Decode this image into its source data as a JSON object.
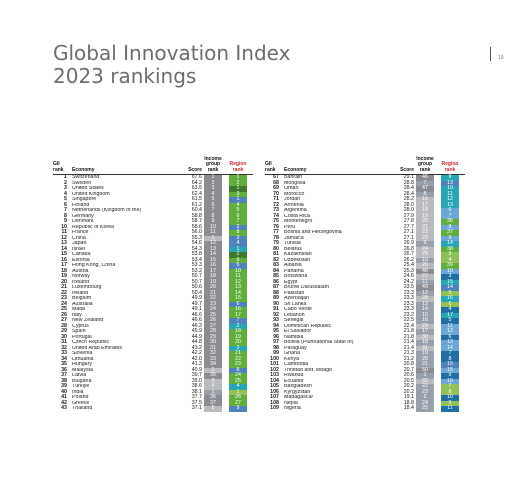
{
  "title": {
    "line1": "Global Innovation Index",
    "line2": "2023 rankings"
  },
  "page_number": "19",
  "headers": {
    "gii_rank": "GII rank",
    "economy": "Economy",
    "score": "Score",
    "income_group_rank": "Income group rank",
    "region_rank": "Region rank"
  },
  "left": [
    {
      "rank": "1",
      "economy": "Switzerland",
      "score": "67.6",
      "ig": "1",
      "reg": "1"
    },
    {
      "rank": "2",
      "economy": "Sweden",
      "score": "64.2",
      "ig": "2",
      "reg": "2"
    },
    {
      "rank": "3",
      "economy": "United States",
      "score": "63.5",
      "ig": "3",
      "reg": "1"
    },
    {
      "rank": "4",
      "economy": "United Kingdom",
      "score": "62.4",
      "ig": "4",
      "reg": "3"
    },
    {
      "rank": "5",
      "economy": "Singapore",
      "score": "61.5",
      "ig": "5",
      "reg": "1"
    },
    {
      "rank": "6",
      "economy": "Finland",
      "score": "61.2",
      "ig": "6",
      "reg": "4"
    },
    {
      "rank": "7",
      "economy": "Netherlands (Kingdom of the)",
      "score": "60.4",
      "ig": "7",
      "reg": "5"
    },
    {
      "rank": "8",
      "economy": "Germany",
      "score": "58.8",
      "ig": "8",
      "reg": "6"
    },
    {
      "rank": "9",
      "economy": "Denmark",
      "score": "58.7",
      "ig": "9",
      "reg": "7"
    },
    {
      "rank": "10",
      "economy": "Republic of Korea",
      "score": "58.6",
      "ig": "10",
      "reg": "2"
    },
    {
      "rank": "11",
      "economy": "France",
      "score": "56.0",
      "ig": "11",
      "reg": "8"
    },
    {
      "rank": "12",
      "economy": "China",
      "score": "55.3",
      "ig": "1",
      "reg": "3"
    },
    {
      "rank": "13",
      "economy": "Japan",
      "score": "54.6",
      "ig": "12",
      "reg": "4"
    },
    {
      "rank": "14",
      "economy": "Israel",
      "score": "54.3",
      "ig": "13",
      "reg": "1"
    },
    {
      "rank": "15",
      "economy": "Canada",
      "score": "53.8",
      "ig": "14",
      "reg": "2"
    },
    {
      "rank": "16",
      "economy": "Estonia",
      "score": "53.4",
      "ig": "15",
      "reg": "9"
    },
    {
      "rank": "17",
      "economy": "Hong Kong, China",
      "score": "53.3",
      "ig": "16",
      "reg": "5"
    },
    {
      "rank": "18",
      "economy": "Austria",
      "score": "53.2",
      "ig": "17",
      "reg": "10"
    },
    {
      "rank": "19",
      "economy": "Norway",
      "score": "50.7",
      "ig": "18",
      "reg": "11"
    },
    {
      "rank": "20",
      "economy": "Iceland",
      "score": "50.7",
      "ig": "19",
      "reg": "12"
    },
    {
      "rank": "21",
      "economy": "Luxembourg",
      "score": "50.6",
      "ig": "20",
      "reg": "13"
    },
    {
      "rank": "22",
      "economy": "Ireland",
      "score": "50.4",
      "ig": "21",
      "reg": "14"
    },
    {
      "rank": "23",
      "economy": "Belgium",
      "score": "49.9",
      "ig": "22",
      "reg": "15"
    },
    {
      "rank": "24",
      "economy": "Australia",
      "score": "49.7",
      "ig": "23",
      "reg": "6"
    },
    {
      "rank": "25",
      "economy": "Malta",
      "score": "49.1",
      "ig": "24",
      "reg": "16"
    },
    {
      "rank": "26",
      "economy": "Italy",
      "score": "46.6",
      "ig": "25",
      "reg": "17"
    },
    {
      "rank": "27",
      "economy": "New Zealand",
      "score": "46.6",
      "ig": "26",
      "reg": "7"
    },
    {
      "rank": "28",
      "economy": "Cyprus",
      "score": "46.3",
      "ig": "27",
      "reg": "2"
    },
    {
      "rank": "29",
      "economy": "Spain",
      "score": "45.9",
      "ig": "28",
      "reg": "18"
    },
    {
      "rank": "30",
      "economy": "Portugal",
      "score": "44.9",
      "ig": "29",
      "reg": "19"
    },
    {
      "rank": "31",
      "economy": "Czech Republic",
      "score": "44.8",
      "ig": "30",
      "reg": "20"
    },
    {
      "rank": "32",
      "economy": "United Arab Emirates",
      "score": "43.2",
      "ig": "31",
      "reg": "3"
    },
    {
      "rank": "33",
      "economy": "Slovenia",
      "score": "42.2",
      "ig": "32",
      "reg": "21"
    },
    {
      "rank": "34",
      "economy": "Lithuania",
      "score": "42.0",
      "ig": "33",
      "reg": "22"
    },
    {
      "rank": "35",
      "economy": "Hungary",
      "score": "41.3",
      "ig": "34",
      "reg": "23"
    },
    {
      "rank": "36",
      "economy": "Malaysia",
      "score": "40.9",
      "ig": "2",
      "reg": "8"
    },
    {
      "rank": "37",
      "economy": "Latvia",
      "score": "39.7",
      "ig": "35",
      "reg": "24"
    },
    {
      "rank": "38",
      "economy": "Bulgaria",
      "score": "39.0",
      "ig": "3",
      "reg": "25"
    },
    {
      "rank": "39",
      "economy": "Türkiye",
      "score": "38.6",
      "ig": "4",
      "reg": "4"
    },
    {
      "rank": "40",
      "economy": "India",
      "score": "38.1",
      "ig": "1",
      "reg": "1"
    },
    {
      "rank": "41",
      "economy": "Poland",
      "score": "37.7",
      "ig": "36",
      "reg": "26"
    },
    {
      "rank": "42",
      "economy": "Greece",
      "score": "37.5",
      "ig": "37",
      "reg": "27"
    },
    {
      "rank": "43",
      "economy": "Thailand",
      "score": "37.1",
      "ig": "5",
      "reg": "9"
    }
  ],
  "right": [
    {
      "rank": "67",
      "economy": "Bahrain",
      "score": "29.1",
      "ig": "46",
      "reg": "9"
    },
    {
      "rank": "68",
      "economy": "Mongolia",
      "score": "28.8",
      "ig": "7",
      "reg": "13"
    },
    {
      "rank": "69",
      "economy": "Oman",
      "score": "28.4",
      "ig": "47",
      "reg": "10"
    },
    {
      "rank": "70",
      "economy": "Morocco",
      "score": "28.4",
      "ig": "8",
      "reg": "11"
    },
    {
      "rank": "71",
      "economy": "Jordan",
      "score": "28.2",
      "ig": "16",
      "reg": "12"
    },
    {
      "rank": "72",
      "economy": "Armenia",
      "score": "28.0",
      "ig": "17",
      "reg": "13"
    },
    {
      "rank": "73",
      "economy": "Argentina",
      "score": "28.0",
      "ig": "18",
      "reg": "6"
    },
    {
      "rank": "74",
      "economy": "Costa Rica",
      "score": "27.9",
      "ig": "19",
      "reg": "7"
    },
    {
      "rank": "75",
      "economy": "Montenegro",
      "score": "27.8",
      "ig": "20",
      "reg": "36"
    },
    {
      "rank": "76",
      "economy": "Peru",
      "score": "27.7",
      "ig": "21",
      "reg": "8"
    },
    {
      "rank": "77",
      "economy": "Bosnia and Herzegovina",
      "score": "27.1",
      "ig": "22",
      "reg": "37"
    },
    {
      "rank": "78",
      "economy": "Jamaica",
      "score": "27.1",
      "ig": "23",
      "reg": "9"
    },
    {
      "rank": "79",
      "economy": "Tunisia",
      "score": "26.9",
      "ig": "9",
      "reg": "14"
    },
    {
      "rank": "80",
      "economy": "Belarus",
      "score": "26.8",
      "ig": "24",
      "reg": "38"
    },
    {
      "rank": "81",
      "economy": "Kazakhstan",
      "score": "26.7",
      "ig": "25",
      "reg": "3"
    },
    {
      "rank": "82",
      "economy": "Uzbekistan",
      "score": "26.2",
      "ig": "10",
      "reg": "4"
    },
    {
      "rank": "83",
      "economy": "Albania",
      "score": "25.4",
      "ig": "26",
      "reg": "39"
    },
    {
      "rank": "84",
      "economy": "Panama",
      "score": "25.3",
      "ig": "48",
      "reg": "10"
    },
    {
      "rank": "85",
      "economy": "Botswana",
      "score": "24.6",
      "ig": "27",
      "reg": "3"
    },
    {
      "rank": "86",
      "economy": "Egypt",
      "score": "24.2",
      "ig": "11",
      "reg": "15"
    },
    {
      "rank": "87",
      "economy": "Brunei Darussalam",
      "score": "23.5",
      "ig": "49",
      "reg": "14"
    },
    {
      "rank": "88",
      "economy": "Pakistan",
      "score": "23.3",
      "ig": "12",
      "reg": "5"
    },
    {
      "rank": "89",
      "economy": "Azerbaijan",
      "score": "23.3",
      "ig": "28",
      "reg": "16"
    },
    {
      "rank": "90",
      "economy": "Sri Lanka",
      "score": "23.3",
      "ig": "13",
      "reg": "6"
    },
    {
      "rank": "91",
      "economy": "Cabo Verde",
      "score": "23.3",
      "ig": "14",
      "reg": "4"
    },
    {
      "rank": "92",
      "economy": "Lebanon",
      "score": "23.2",
      "ig": "15",
      "reg": "17"
    },
    {
      "rank": "93",
      "economy": "Senegal",
      "score": "22.5",
      "ig": "16",
      "reg": "5"
    },
    {
      "rank": "94",
      "economy": "Dominican Republic",
      "score": "22.4",
      "ig": "29",
      "reg": "11"
    },
    {
      "rank": "95",
      "economy": "El Salvador",
      "score": "21.8",
      "ig": "17",
      "reg": "12"
    },
    {
      "rank": "96",
      "economy": "Namibia",
      "score": "21.8",
      "ig": "30",
      "reg": "6"
    },
    {
      "rank": "97",
      "economy": "Bolivia (Plurinational State of)",
      "score": "21.4",
      "ig": "18",
      "reg": "13"
    },
    {
      "rank": "98",
      "economy": "Paraguay",
      "score": "21.4",
      "ig": "31",
      "reg": "14"
    },
    {
      "rank": "99",
      "economy": "Ghana",
      "score": "21.3",
      "ig": "19",
      "reg": "7"
    },
    {
      "rank": "100",
      "economy": "Kenya",
      "score": "21.2",
      "ig": "20",
      "reg": "8"
    },
    {
      "rank": "101",
      "economy": "Cambodia",
      "score": "20.8",
      "ig": "21",
      "reg": "15"
    },
    {
      "rank": "102",
      "economy": "Trinidad and Tobago",
      "score": "20.7",
      "ig": "50",
      "reg": "15"
    },
    {
      "rank": "103",
      "economy": "Rwanda",
      "score": "20.6",
      "ig": "1",
      "reg": "9"
    },
    {
      "rank": "104",
      "economy": "Ecuador",
      "score": "20.5",
      "ig": "32",
      "reg": "16"
    },
    {
      "rank": "105",
      "economy": "Bangladesh",
      "score": "20.2",
      "ig": "22",
      "reg": "7"
    },
    {
      "rank": "106",
      "economy": "Kyrgyzstan",
      "score": "20.2",
      "ig": "23",
      "reg": "8"
    },
    {
      "rank": "107",
      "economy": "Madagascar",
      "score": "19.1",
      "ig": "2",
      "reg": "10"
    },
    {
      "rank": "108",
      "economy": "Nepal",
      "score": "18.8",
      "ig": "24",
      "reg": "9"
    },
    {
      "rank": "109",
      "economy": "Nigeria",
      "score": "18.4",
      "ig": "25",
      "reg": "11"
    }
  ],
  "colors": {
    "high_income": "#8b8d92",
    "upper_middle_income": "#b9bbbf",
    "lower_middle_income": "#9aa0aa",
    "europe": "#61ae3c",
    "northern_america": "#3d7a2b",
    "south_east_asia": "#4f81bd",
    "north_africa_western_asia": "#27a6b6",
    "latin_america": "#6aa7d6",
    "central_southern_asia": "#8fc156",
    "sub_saharan_africa": "#1f6fa5"
  }
}
